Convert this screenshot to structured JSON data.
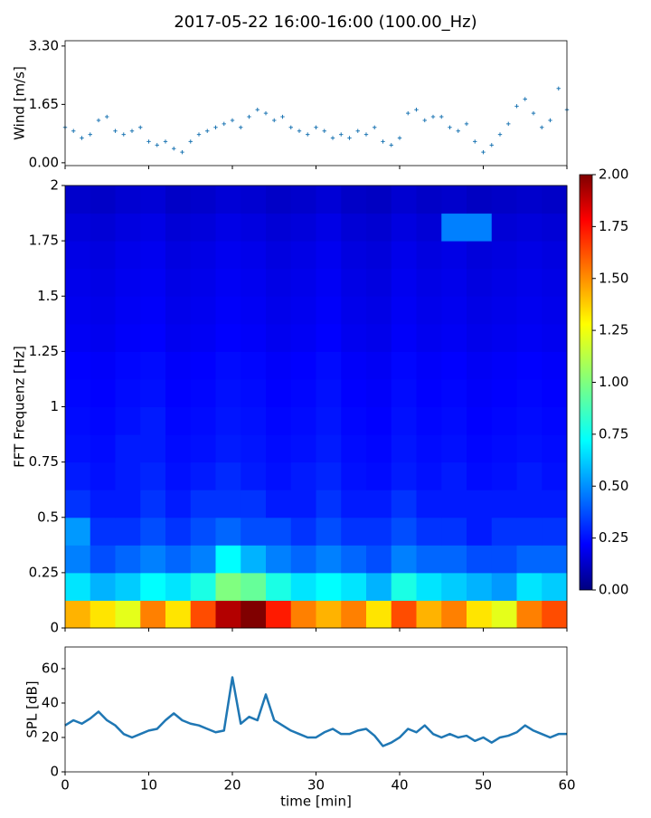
{
  "title": "2017-05-22 16:00-16:00 (100.00_Hz)",
  "chart_data": [
    {
      "type": "scatter",
      "ylabel": "Wind [m/s]",
      "color": "#1f77b4",
      "marker": "plus",
      "x": [
        0,
        1,
        2,
        3,
        4,
        5,
        6,
        7,
        8,
        9,
        10,
        11,
        12,
        13,
        14,
        15,
        16,
        17,
        18,
        19,
        20,
        21,
        22,
        23,
        24,
        25,
        26,
        27,
        28,
        29,
        30,
        31,
        32,
        33,
        34,
        35,
        36,
        37,
        38,
        39,
        40,
        41,
        42,
        43,
        44,
        45,
        46,
        47,
        48,
        49,
        50,
        51,
        52,
        53,
        54,
        55,
        56,
        57,
        58,
        59,
        60
      ],
      "values": [
        1.0,
        0.9,
        0.7,
        0.8,
        1.2,
        1.3,
        0.9,
        0.8,
        0.9,
        1.0,
        0.6,
        0.5,
        0.6,
        0.4,
        0.3,
        0.6,
        0.8,
        0.9,
        1.0,
        1.1,
        1.2,
        1.0,
        1.3,
        1.5,
        1.4,
        1.2,
        1.3,
        1.0,
        0.9,
        0.8,
        1.0,
        0.9,
        0.7,
        0.8,
        0.7,
        0.9,
        0.8,
        1.0,
        0.6,
        0.5,
        0.7,
        1.4,
        1.5,
        1.2,
        1.3,
        1.3,
        1.0,
        0.9,
        1.1,
        0.6,
        0.3,
        0.5,
        0.8,
        1.1,
        1.6,
        1.8,
        1.4,
        1.0,
        1.2,
        2.1,
        1.5
      ],
      "xlim": [
        0,
        60
      ],
      "xticks": [
        0,
        10,
        20,
        30,
        40,
        50,
        60
      ],
      "ylim": [
        -0.08,
        3.45
      ],
      "yticks": [
        {
          "value": 0,
          "label": "0.00"
        },
        {
          "value": 1.65,
          "label": "1.65"
        },
        {
          "value": 3.3,
          "label": "3.30"
        }
      ]
    },
    {
      "type": "heatmap",
      "ylabel": "FFT Frequenz [Hz]",
      "colormap": "jet",
      "xlim": [
        0,
        60
      ],
      "xticks": [
        0,
        10,
        20,
        30,
        40,
        50,
        60
      ],
      "ylim": [
        0,
        2
      ],
      "yticks": [
        0,
        0.25,
        0.5,
        0.75,
        1,
        1.25,
        1.5,
        1.75,
        2
      ],
      "zlim": [
        0,
        2
      ],
      "colorbar_ticks": [
        {
          "value": 0,
          "label": "0.00"
        },
        {
          "value": 0.25,
          "label": "0.25"
        },
        {
          "value": 0.5,
          "label": "0.50"
        },
        {
          "value": 0.75,
          "label": "0.75"
        },
        {
          "value": 1,
          "label": "1.00"
        },
        {
          "value": 1.25,
          "label": "1.25"
        },
        {
          "value": 1.5,
          "label": "1.50"
        },
        {
          "value": 1.75,
          "label": "1.75"
        },
        {
          "value": 2,
          "label": "2.00"
        }
      ],
      "z": [
        [
          1.4,
          1.3,
          1.2,
          1.5,
          1.3,
          1.6,
          1.9,
          2.0,
          1.7,
          1.5,
          1.4,
          1.5,
          1.3,
          1.6,
          1.4,
          1.5,
          1.3,
          1.2,
          1.5,
          1.6
        ],
        [
          0.7,
          0.6,
          0.65,
          0.75,
          0.7,
          0.8,
          1.0,
          0.95,
          0.8,
          0.7,
          0.75,
          0.7,
          0.6,
          0.8,
          0.7,
          0.65,
          0.6,
          0.55,
          0.7,
          0.65
        ],
        [
          0.5,
          0.4,
          0.45,
          0.5,
          0.45,
          0.5,
          0.75,
          0.6,
          0.5,
          0.45,
          0.5,
          0.45,
          0.4,
          0.5,
          0.45,
          0.45,
          0.4,
          0.4,
          0.45,
          0.45
        ],
        [
          0.55,
          0.35,
          0.35,
          0.4,
          0.35,
          0.4,
          0.45,
          0.4,
          0.4,
          0.35,
          0.4,
          0.35,
          0.35,
          0.4,
          0.35,
          0.35,
          0.3,
          0.35,
          0.35,
          0.35
        ],
        [
          0.35,
          0.3,
          0.3,
          0.35,
          0.3,
          0.35,
          0.35,
          0.35,
          0.3,
          0.3,
          0.35,
          0.3,
          0.3,
          0.35,
          0.3,
          0.3,
          0.3,
          0.3,
          0.3,
          0.3
        ],
        [
          0.3,
          0.28,
          0.3,
          0.32,
          0.28,
          0.3,
          0.33,
          0.3,
          0.28,
          0.3,
          0.32,
          0.28,
          0.27,
          0.3,
          0.28,
          0.3,
          0.27,
          0.28,
          0.3,
          0.28
        ],
        [
          0.28,
          0.27,
          0.3,
          0.3,
          0.27,
          0.28,
          0.3,
          0.29,
          0.27,
          0.28,
          0.3,
          0.27,
          0.26,
          0.29,
          0.27,
          0.28,
          0.26,
          0.27,
          0.28,
          0.27
        ],
        [
          0.27,
          0.26,
          0.28,
          0.3,
          0.26,
          0.27,
          0.29,
          0.28,
          0.26,
          0.27,
          0.29,
          0.26,
          0.25,
          0.28,
          0.26,
          0.27,
          0.25,
          0.26,
          0.27,
          0.26
        ],
        [
          0.26,
          0.25,
          0.27,
          0.28,
          0.25,
          0.26,
          0.28,
          0.27,
          0.25,
          0.26,
          0.28,
          0.25,
          0.24,
          0.27,
          0.25,
          0.26,
          0.24,
          0.25,
          0.26,
          0.25
        ],
        [
          0.25,
          0.24,
          0.26,
          0.27,
          0.24,
          0.25,
          0.27,
          0.26,
          0.24,
          0.25,
          0.27,
          0.24,
          0.23,
          0.26,
          0.24,
          0.25,
          0.23,
          0.24,
          0.25,
          0.24
        ],
        [
          0.23,
          0.22,
          0.24,
          0.25,
          0.22,
          0.23,
          0.25,
          0.24,
          0.22,
          0.23,
          0.25,
          0.22,
          0.21,
          0.24,
          0.22,
          0.23,
          0.21,
          0.22,
          0.23,
          0.22
        ],
        [
          0.22,
          0.21,
          0.23,
          0.24,
          0.21,
          0.22,
          0.24,
          0.23,
          0.21,
          0.22,
          0.24,
          0.21,
          0.2,
          0.23,
          0.21,
          0.22,
          0.2,
          0.21,
          0.22,
          0.21
        ],
        [
          0.21,
          0.2,
          0.22,
          0.23,
          0.2,
          0.21,
          0.23,
          0.22,
          0.2,
          0.21,
          0.23,
          0.2,
          0.19,
          0.22,
          0.2,
          0.21,
          0.19,
          0.2,
          0.21,
          0.2
        ],
        [
          0.2,
          0.19,
          0.21,
          0.22,
          0.19,
          0.2,
          0.22,
          0.21,
          0.19,
          0.2,
          0.22,
          0.19,
          0.18,
          0.21,
          0.19,
          0.2,
          0.18,
          0.19,
          0.2,
          0.19
        ],
        [
          0.18,
          0.17,
          0.19,
          0.2,
          0.17,
          0.18,
          0.2,
          0.19,
          0.17,
          0.18,
          0.2,
          0.17,
          0.16,
          0.19,
          0.17,
          0.5,
          0.5,
          0.17,
          0.18,
          0.17
        ],
        [
          0.15,
          0.14,
          0.16,
          0.17,
          0.14,
          0.15,
          0.17,
          0.16,
          0.14,
          0.15,
          0.17,
          0.14,
          0.13,
          0.16,
          0.14,
          0.15,
          0.13,
          0.14,
          0.15,
          0.14
        ]
      ]
    },
    {
      "type": "line",
      "ylabel": "SPL [dB]",
      "xlabel": "time [min]",
      "color": "#1f77b4",
      "x": [
        0,
        1,
        2,
        3,
        4,
        5,
        6,
        7,
        8,
        9,
        10,
        11,
        12,
        13,
        14,
        15,
        16,
        17,
        18,
        19,
        20,
        21,
        22,
        23,
        24,
        25,
        26,
        27,
        28,
        29,
        30,
        31,
        32,
        33,
        34,
        35,
        36,
        37,
        38,
        39,
        40,
        41,
        42,
        43,
        44,
        45,
        46,
        47,
        48,
        49,
        50,
        51,
        52,
        53,
        54,
        55,
        56,
        57,
        58,
        59,
        60
      ],
      "values": [
        27,
        30,
        28,
        31,
        35,
        30,
        27,
        22,
        20,
        22,
        24,
        25,
        30,
        34,
        30,
        28,
        27,
        25,
        23,
        24,
        55,
        28,
        32,
        30,
        45,
        30,
        27,
        24,
        22,
        20,
        20,
        23,
        25,
        22,
        22,
        24,
        25,
        21,
        15,
        17,
        20,
        25,
        23,
        27,
        22,
        20,
        22,
        20,
        21,
        18,
        20,
        17,
        20,
        21,
        23,
        27,
        24,
        22,
        20,
        22,
        22
      ],
      "xlim": [
        0,
        60
      ],
      "xticks": [
        0,
        10,
        20,
        30,
        40,
        50,
        60
      ],
      "ylim": [
        0,
        72.6
      ],
      "yticks": [
        0,
        20,
        40,
        60
      ]
    }
  ]
}
